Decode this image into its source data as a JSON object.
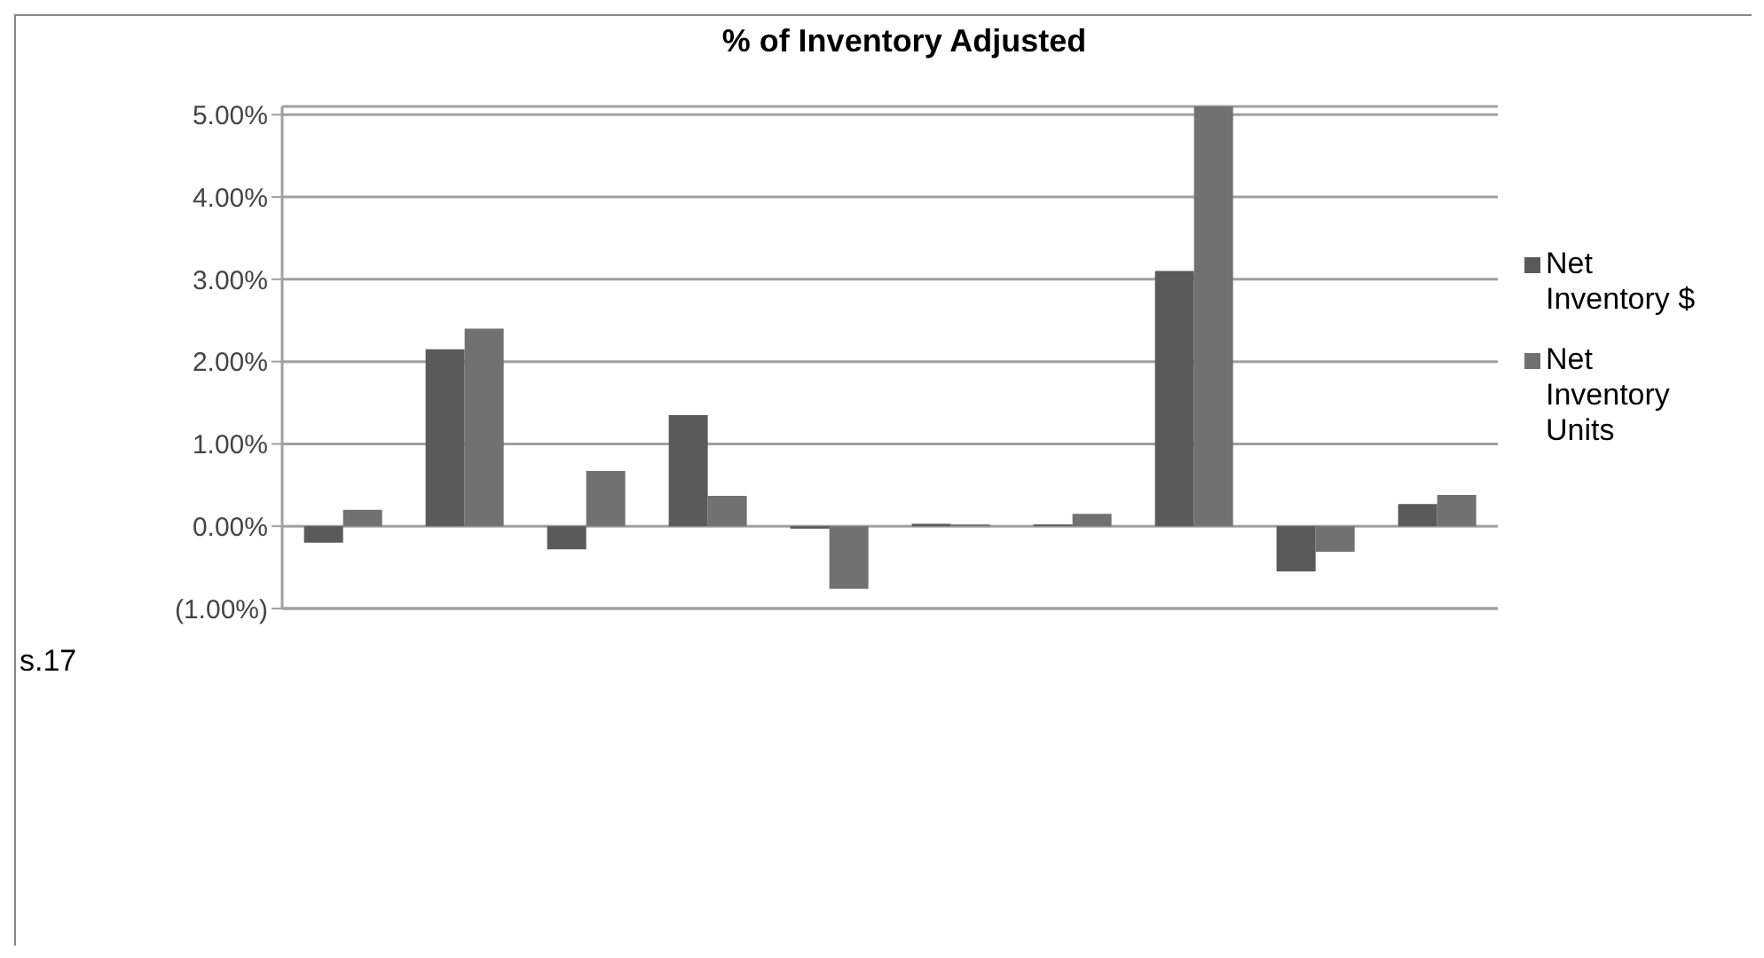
{
  "chart_data": {
    "type": "bar",
    "title": "% of Inventory Adjusted",
    "categories": [
      null,
      null,
      null,
      null,
      null,
      null,
      null,
      null,
      null,
      null
    ],
    "series": [
      {
        "name": "Net Inventory $",
        "color": "#5a5a5a",
        "values": [
          -0.2,
          2.15,
          -0.28,
          1.35,
          -0.03,
          0.03,
          0.02,
          3.1,
          -0.55,
          0.27
        ]
      },
      {
        "name": "Net Inventory Units",
        "color": "#717171",
        "values": [
          0.2,
          2.4,
          0.67,
          0.37,
          -0.76,
          0.02,
          0.15,
          5.1,
          -0.31,
          0.38
        ]
      }
    ],
    "ylim": [
      -1,
      5.1
    ],
    "yticks": [
      {
        "value": -1,
        "label": "(1.00%)"
      },
      {
        "value": 0,
        "label": "0.00%"
      },
      {
        "value": 1,
        "label": "1.00%"
      },
      {
        "value": 2,
        "label": "2.00%"
      },
      {
        "value": 3,
        "label": "3.00%"
      },
      {
        "value": 4,
        "label": "4.00%"
      },
      {
        "value": 5,
        "label": "5.00%"
      }
    ],
    "grid": "y",
    "legend": "right",
    "tick_labels": "y",
    "annotations": [
      "s.17"
    ]
  }
}
